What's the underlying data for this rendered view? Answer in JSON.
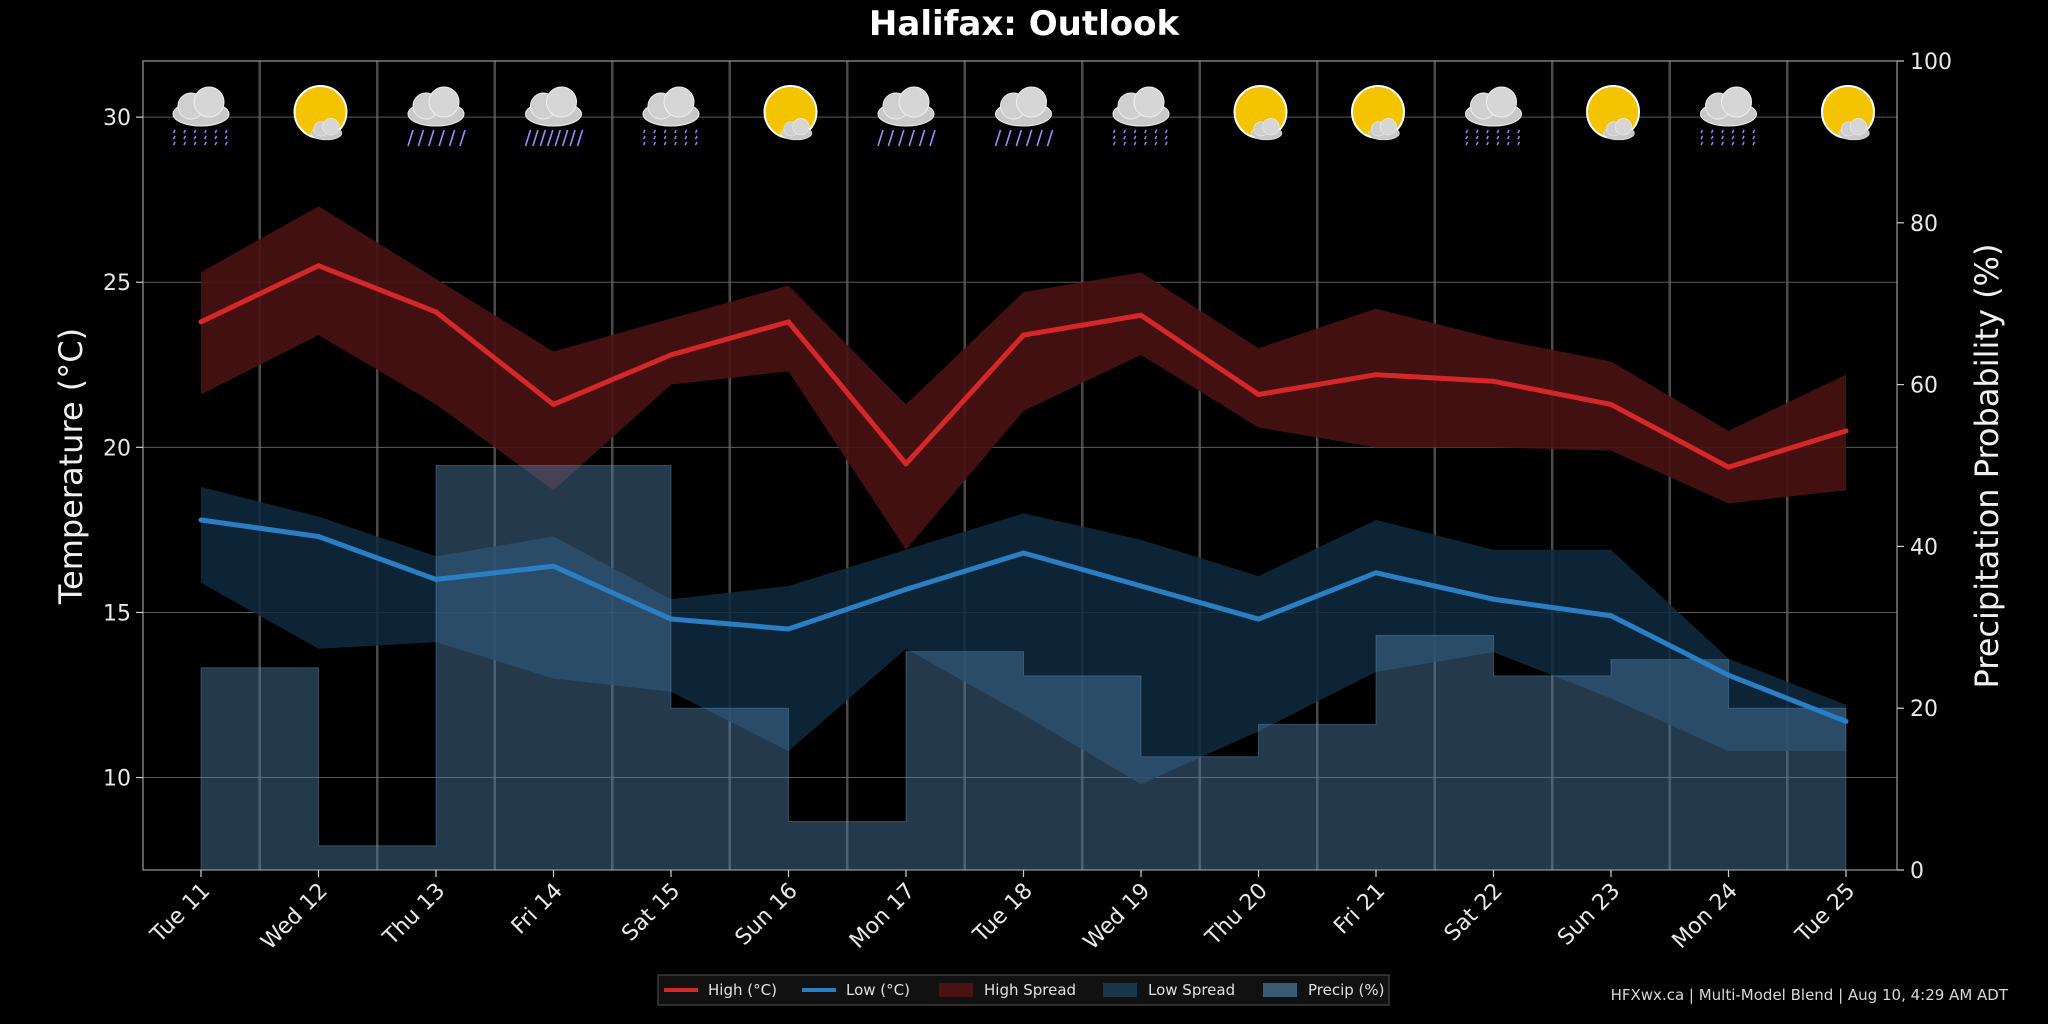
{
  "chart_data": {
    "type": "line",
    "title": "Halifax: Outlook",
    "ylabel": "Temperature (°C)",
    "y2label": "Precipitation Probability (%)",
    "ylim": [
      7.2,
      31.7
    ],
    "y2lim": [
      0,
      100
    ],
    "yticks": [
      10,
      15,
      20,
      25,
      30
    ],
    "y2ticks": [
      0,
      20,
      40,
      60,
      80,
      100
    ],
    "categories": [
      "Tue 11",
      "Wed 12",
      "Thu 13",
      "Fri 14",
      "Sat 15",
      "Sun 16",
      "Mon 17",
      "Tue 18",
      "Wed 19",
      "Thu 20",
      "Fri 21",
      "Sat 22",
      "Sun 23",
      "Mon 24",
      "Tue 25"
    ],
    "grid": true,
    "legend_position": "bottom-center",
    "series": [
      {
        "name": "High (°C)",
        "type": "line",
        "axis": "left",
        "color": "#d62728",
        "values": [
          23.8,
          25.5,
          24.1,
          21.3,
          22.8,
          23.8,
          19.5,
          23.4,
          24.0,
          21.6,
          22.2,
          22.0,
          21.3,
          19.4,
          20.5
        ]
      },
      {
        "name": "Low (°C)",
        "type": "line",
        "axis": "left",
        "color": "#2a7fc4",
        "values": [
          17.8,
          17.3,
          16.0,
          16.4,
          14.8,
          14.5,
          15.7,
          16.8,
          15.8,
          14.8,
          16.2,
          15.4,
          14.9,
          13.1,
          11.7
        ]
      },
      {
        "name": "High Spread",
        "type": "band",
        "axis": "left",
        "color": "#4a1214",
        "upper": [
          25.3,
          27.3,
          25.1,
          22.9,
          23.9,
          24.9,
          21.3,
          24.7,
          25.3,
          23.0,
          24.2,
          23.3,
          22.6,
          20.5,
          22.2
        ],
        "lower": [
          21.6,
          23.4,
          21.3,
          18.7,
          21.9,
          22.3,
          16.9,
          21.1,
          22.8,
          20.6,
          20.0,
          20.0,
          19.9,
          18.3,
          18.7
        ]
      },
      {
        "name": "Low Spread",
        "type": "band",
        "axis": "left",
        "color": "#0d2436",
        "upper": [
          18.8,
          17.9,
          16.7,
          17.3,
          15.4,
          15.8,
          16.9,
          18.0,
          17.2,
          16.1,
          17.8,
          16.9,
          16.9,
          13.6,
          12.2
        ],
        "lower": [
          15.9,
          13.9,
          14.1,
          13.0,
          12.6,
          10.8,
          13.9,
          11.9,
          9.8,
          11.4,
          13.2,
          13.8,
          12.4,
          10.8,
          10.8
        ]
      },
      {
        "name": "Precip (%)",
        "type": "step",
        "axis": "right",
        "color": "#5a8cb8",
        "values": [
          25,
          3,
          50,
          50,
          20,
          6,
          27,
          24,
          14,
          18,
          29,
          24,
          26,
          20,
          18
        ]
      }
    ],
    "weather_icons": [
      "rain-icon",
      "sun-cloud-icon",
      "showers-icon",
      "heavy-rain-icon",
      "rain-icon",
      "sun-cloud-icon",
      "showers-icon",
      "showers-icon",
      "rain-icon",
      "sun-cloud-icon",
      "sun-cloud-icon",
      "rain-icon",
      "sun-cloud-icon",
      "rain-icon",
      "sun-cloud-icon"
    ]
  },
  "legend": {
    "items": [
      "High (°C)",
      "Low (°C)",
      "High Spread",
      "Low Spread",
      "Precip (%)"
    ]
  },
  "footer": "HFXwx.ca | Multi-Model Blend | Aug 10, 4:29 AM ADT"
}
